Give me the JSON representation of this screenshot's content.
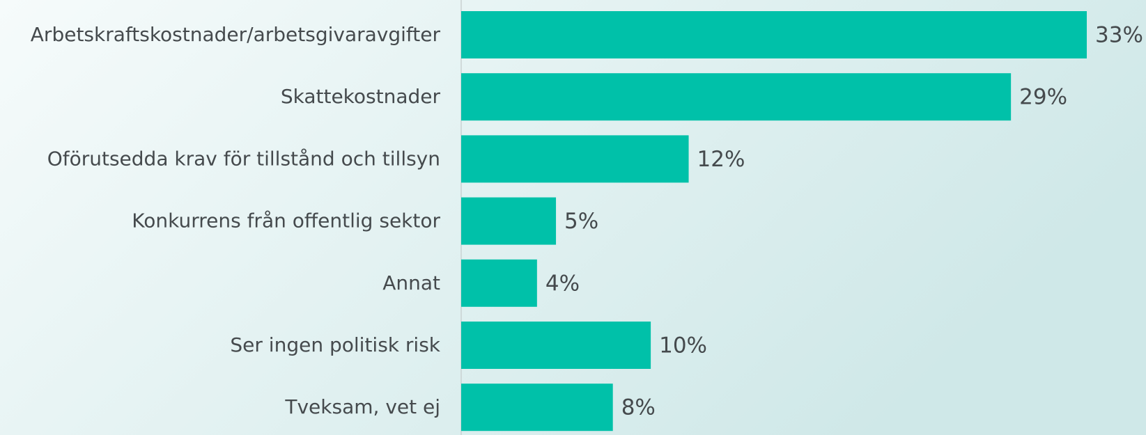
{
  "chart_data": {
    "type": "bar",
    "orientation": "horizontal",
    "categories": [
      "Arbetskraftskostnader/arbetsgivaravgifter",
      "Skattekostnader",
      "Oförutsedda krav för tillstånd och tillsyn",
      "Konkurrens från offentlig sektor",
      "Annat",
      "Ser ingen politisk risk",
      "Tveksam, vet ej"
    ],
    "values": [
      33,
      29,
      12,
      5,
      4,
      10,
      8
    ],
    "value_labels": [
      "33%",
      "29%",
      "12%",
      "5%",
      "4%",
      "10%",
      "8%"
    ],
    "color": "#00c1a9"
  }
}
